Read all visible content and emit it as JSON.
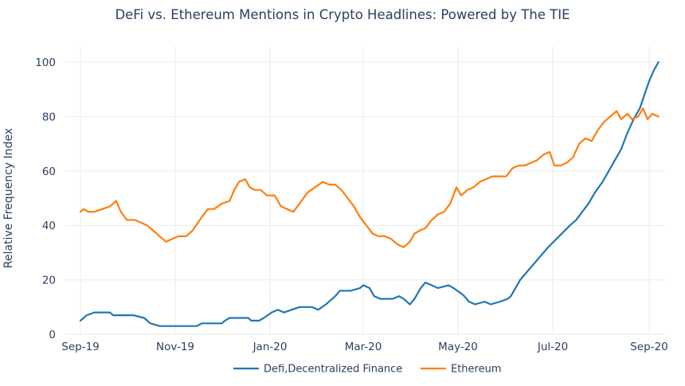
{
  "chart_data": {
    "type": "line",
    "title": "DeFi vs. Ethereum Mentions in Crypto Headlines: Powered by The TIE",
    "ylabel": "Relative Frequency Index",
    "xlabel": "",
    "x_start": "2019-09-01",
    "x_end": "2020-09-01",
    "xlim": [
      "2019-09-01",
      "2020-09-01"
    ],
    "ylim": [
      0,
      100
    ],
    "y_ticks": [
      0,
      20,
      40,
      60,
      80,
      100
    ],
    "x_ticks": [
      {
        "date": "2019-09-01",
        "label": "Sep-19"
      },
      {
        "date": "2019-11-01",
        "label": "Nov-19"
      },
      {
        "date": "2020-01-01",
        "label": "Jan-20"
      },
      {
        "date": "2020-03-01",
        "label": "Mar-20"
      },
      {
        "date": "2020-05-01",
        "label": "May-20"
      },
      {
        "date": "2020-07-01",
        "label": "Jul-20"
      },
      {
        "date": "2020-09-01",
        "label": "Sep-20"
      }
    ],
    "grid": true,
    "legend_position": "bottom",
    "series": [
      {
        "name": "Defi,Decentralized Finance",
        "color": "#1f77b4",
        "points": [
          [
            "2019-09-01",
            5
          ],
          [
            "2019-09-05",
            7
          ],
          [
            "2019-09-10",
            8
          ],
          [
            "2019-09-20",
            8
          ],
          [
            "2019-09-22",
            7
          ],
          [
            "2019-10-05",
            7
          ],
          [
            "2019-10-12",
            6
          ],
          [
            "2019-10-16",
            4
          ],
          [
            "2019-10-22",
            3
          ],
          [
            "2019-11-15",
            3
          ],
          [
            "2019-11-18",
            4
          ],
          [
            "2019-12-01",
            4
          ],
          [
            "2019-12-03",
            5
          ],
          [
            "2019-12-06",
            6
          ],
          [
            "2019-12-18",
            6
          ],
          [
            "2019-12-20",
            5
          ],
          [
            "2019-12-25",
            5
          ],
          [
            "2019-12-28",
            6
          ],
          [
            "2020-01-02",
            8
          ],
          [
            "2020-01-06",
            9
          ],
          [
            "2020-01-10",
            8
          ],
          [
            "2020-01-15",
            9
          ],
          [
            "2020-01-20",
            10
          ],
          [
            "2020-01-28",
            10
          ],
          [
            "2020-02-01",
            9
          ],
          [
            "2020-02-06",
            11
          ],
          [
            "2020-02-12",
            14
          ],
          [
            "2020-02-15",
            16
          ],
          [
            "2020-02-22",
            16
          ],
          [
            "2020-02-28",
            17
          ],
          [
            "2020-03-01",
            18
          ],
          [
            "2020-03-05",
            17
          ],
          [
            "2020-03-08",
            14
          ],
          [
            "2020-03-12",
            13
          ],
          [
            "2020-03-20",
            13
          ],
          [
            "2020-03-24",
            14
          ],
          [
            "2020-03-27",
            13
          ],
          [
            "2020-03-31",
            11
          ],
          [
            "2020-04-03",
            13
          ],
          [
            "2020-04-07",
            17
          ],
          [
            "2020-04-10",
            19
          ],
          [
            "2020-04-14",
            18
          ],
          [
            "2020-04-18",
            17
          ],
          [
            "2020-04-25",
            18
          ],
          [
            "2020-04-28",
            17
          ],
          [
            "2020-05-03",
            15
          ],
          [
            "2020-05-05",
            14
          ],
          [
            "2020-05-08",
            12
          ],
          [
            "2020-05-12",
            11
          ],
          [
            "2020-05-18",
            12
          ],
          [
            "2020-05-22",
            11
          ],
          [
            "2020-05-28",
            12
          ],
          [
            "2020-06-02",
            13
          ],
          [
            "2020-06-04",
            14
          ],
          [
            "2020-06-10",
            20
          ],
          [
            "2020-06-16",
            24
          ],
          [
            "2020-06-22",
            28
          ],
          [
            "2020-06-28",
            32
          ],
          [
            "2020-07-05",
            36
          ],
          [
            "2020-07-12",
            40
          ],
          [
            "2020-07-16",
            42
          ],
          [
            "2020-07-20",
            45
          ],
          [
            "2020-07-24",
            48
          ],
          [
            "2020-07-28",
            52
          ],
          [
            "2020-08-02",
            56
          ],
          [
            "2020-08-06",
            60
          ],
          [
            "2020-08-10",
            64
          ],
          [
            "2020-08-14",
            68
          ],
          [
            "2020-08-18",
            74
          ],
          [
            "2020-08-22",
            79
          ],
          [
            "2020-08-26",
            83
          ],
          [
            "2020-08-29",
            88
          ],
          [
            "2020-09-01",
            93
          ],
          [
            "2020-09-04",
            97
          ],
          [
            "2020-09-06",
            99
          ],
          [
            "2020-09-07",
            100
          ]
        ]
      },
      {
        "name": "Ethereum",
        "color": "#ff7f0e",
        "points": [
          [
            "2019-09-01",
            45
          ],
          [
            "2019-09-03",
            46
          ],
          [
            "2019-09-06",
            45
          ],
          [
            "2019-09-10",
            45
          ],
          [
            "2019-09-15",
            46
          ],
          [
            "2019-09-20",
            47
          ],
          [
            "2019-09-24",
            49
          ],
          [
            "2019-09-27",
            45
          ],
          [
            "2019-10-01",
            42
          ],
          [
            "2019-10-06",
            42
          ],
          [
            "2019-10-10",
            41
          ],
          [
            "2019-10-14",
            40
          ],
          [
            "2019-10-18",
            38
          ],
          [
            "2019-10-22",
            36
          ],
          [
            "2019-10-26",
            34
          ],
          [
            "2019-10-30",
            35
          ],
          [
            "2019-11-03",
            36
          ],
          [
            "2019-11-08",
            36
          ],
          [
            "2019-11-12",
            38
          ],
          [
            "2019-11-18",
            43
          ],
          [
            "2019-11-22",
            46
          ],
          [
            "2019-11-26",
            46
          ],
          [
            "2019-12-01",
            48
          ],
          [
            "2019-12-06",
            49
          ],
          [
            "2019-12-09",
            53
          ],
          [
            "2019-12-12",
            56
          ],
          [
            "2019-12-16",
            57
          ],
          [
            "2019-12-19",
            54
          ],
          [
            "2019-12-22",
            53
          ],
          [
            "2019-12-26",
            53
          ],
          [
            "2019-12-30",
            51
          ],
          [
            "2020-01-04",
            51
          ],
          [
            "2020-01-08",
            47
          ],
          [
            "2020-01-12",
            46
          ],
          [
            "2020-01-16",
            45
          ],
          [
            "2020-01-20",
            48
          ],
          [
            "2020-01-25",
            52
          ],
          [
            "2020-01-30",
            54
          ],
          [
            "2020-02-04",
            56
          ],
          [
            "2020-02-08",
            55
          ],
          [
            "2020-02-12",
            55
          ],
          [
            "2020-02-16",
            53
          ],
          [
            "2020-02-20",
            50
          ],
          [
            "2020-02-24",
            47
          ],
          [
            "2020-02-28",
            43
          ],
          [
            "2020-03-03",
            40
          ],
          [
            "2020-03-07",
            37
          ],
          [
            "2020-03-11",
            36
          ],
          [
            "2020-03-15",
            36
          ],
          [
            "2020-03-19",
            35
          ],
          [
            "2020-03-23",
            33
          ],
          [
            "2020-03-27",
            32
          ],
          [
            "2020-03-31",
            34
          ],
          [
            "2020-04-03",
            37
          ],
          [
            "2020-04-06",
            38
          ],
          [
            "2020-04-10",
            39
          ],
          [
            "2020-04-14",
            42
          ],
          [
            "2020-04-18",
            44
          ],
          [
            "2020-04-22",
            45
          ],
          [
            "2020-04-26",
            48
          ],
          [
            "2020-04-30",
            54
          ],
          [
            "2020-05-03",
            51
          ],
          [
            "2020-05-07",
            53
          ],
          [
            "2020-05-11",
            54
          ],
          [
            "2020-05-15",
            56
          ],
          [
            "2020-05-19",
            57
          ],
          [
            "2020-05-23",
            58
          ],
          [
            "2020-05-27",
            58
          ],
          [
            "2020-06-01",
            58
          ],
          [
            "2020-06-05",
            61
          ],
          [
            "2020-06-09",
            62
          ],
          [
            "2020-06-13",
            62
          ],
          [
            "2020-06-17",
            63
          ],
          [
            "2020-06-21",
            64
          ],
          [
            "2020-06-25",
            66
          ],
          [
            "2020-06-29",
            67
          ],
          [
            "2020-07-02",
            62
          ],
          [
            "2020-07-06",
            62
          ],
          [
            "2020-07-10",
            63
          ],
          [
            "2020-07-14",
            65
          ],
          [
            "2020-07-18",
            70
          ],
          [
            "2020-07-22",
            72
          ],
          [
            "2020-07-26",
            71
          ],
          [
            "2020-07-30",
            75
          ],
          [
            "2020-08-03",
            78
          ],
          [
            "2020-08-07",
            80
          ],
          [
            "2020-08-11",
            82
          ],
          [
            "2020-08-14",
            79
          ],
          [
            "2020-08-18",
            81
          ],
          [
            "2020-08-21",
            79
          ],
          [
            "2020-08-25",
            80
          ],
          [
            "2020-08-28",
            83
          ],
          [
            "2020-08-31",
            79
          ],
          [
            "2020-09-03",
            81
          ],
          [
            "2020-09-07",
            80
          ]
        ]
      }
    ]
  }
}
